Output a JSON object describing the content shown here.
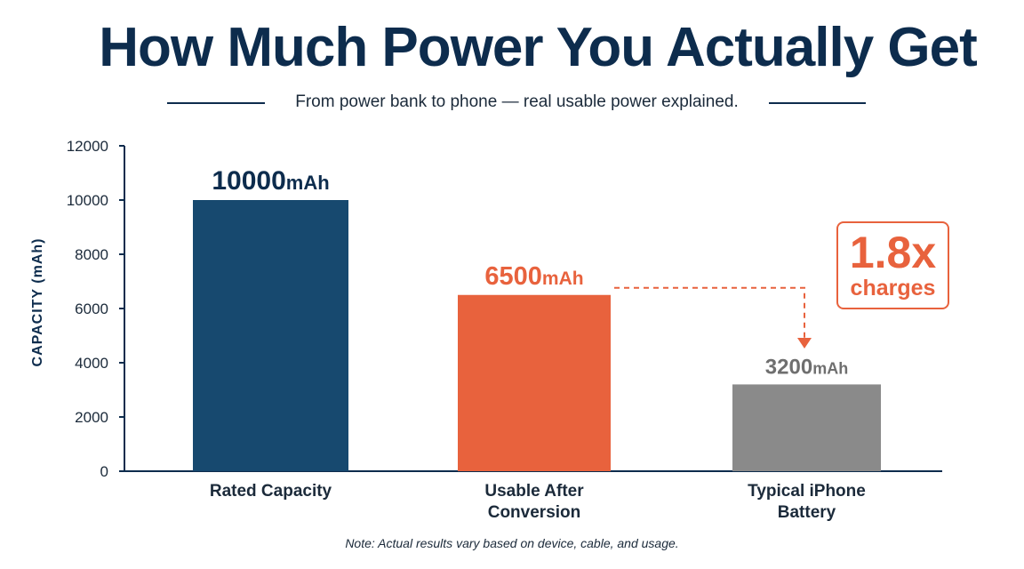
{
  "title": "How Much Power You Actually Get",
  "subtitle": "From power bank to phone — real usable power explained.",
  "note": "Note: Actual results vary based on device, cable, and usage.",
  "callout": {
    "value": "1.8x",
    "label": "charges"
  },
  "colors": {
    "navy": "#0d2c4d",
    "blue_bar": "#17496f",
    "orange": "#e8623d",
    "gray": "#8a8a8a"
  },
  "chart_data": {
    "type": "bar",
    "ylabel": "CAPACITY (mAh)",
    "xlabel": "",
    "ylim": [
      0,
      12000
    ],
    "yticks": [
      0,
      2000,
      4000,
      6000,
      8000,
      10000,
      12000
    ],
    "categories": [
      [
        "Rated Capacity"
      ],
      [
        "Usable After",
        "Conversion"
      ],
      [
        "Typical iPhone",
        "Battery"
      ]
    ],
    "values": [
      10000,
      6500,
      3200
    ],
    "value_labels": [
      {
        "number": "10000",
        "unit": "mAh"
      },
      {
        "number": "6500",
        "unit": "mAh"
      },
      {
        "number": "3200",
        "unit": "mAh"
      }
    ],
    "bar_colors": [
      "#17496f",
      "#e8623d",
      "#8a8a8a"
    ],
    "label_colors": [
      "#0d2c4d",
      "#e8623d",
      "#6f6f6f"
    ],
    "grid": false
  }
}
